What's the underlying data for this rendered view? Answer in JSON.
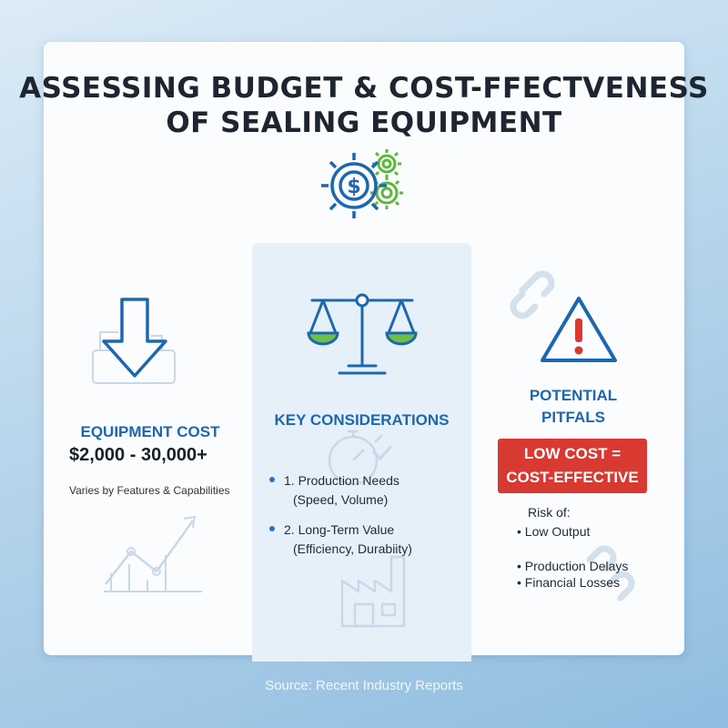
{
  "title": {
    "line1": "ASSESSING BUDGET & COST-FFECTVENESS",
    "line2": "OF SEALING EQUIPMENT"
  },
  "equipment": {
    "heading": "EQUIPMENT COST",
    "value": "$2,000 - 30,000+",
    "note": "Varies by Features & Capabilities"
  },
  "considerations": {
    "heading": "KEY CONSIDERATIONS",
    "items": [
      {
        "label": "1. Production Needs",
        "detail": "(Speed, Volume)"
      },
      {
        "label": "2. Long-Term Value",
        "detail": "(Efficiency, Durabiity)"
      }
    ]
  },
  "pitfalls": {
    "heading_line1": "POTENTIAL",
    "heading_line2": "PITFALS",
    "alert_line1": "LOW COST =",
    "alert_line2": "COST-EFFECTIVE",
    "risk_label": "Risk of:",
    "risks": [
      "• Low Output",
      "• Production Delays",
      "• Financial Losses"
    ]
  },
  "source": "Source: Recent Industry Reports",
  "colors": {
    "accent_blue": "#1d67b1",
    "accent_green": "#5cb83a",
    "alert_red": "#d83a32"
  },
  "icons": [
    "gear-dollar-icon",
    "down-arrow-icon",
    "trend-chart-icon",
    "balance-scale-icon",
    "stopwatch-icon",
    "factory-icon",
    "broken-chain-icon",
    "warning-icon"
  ]
}
